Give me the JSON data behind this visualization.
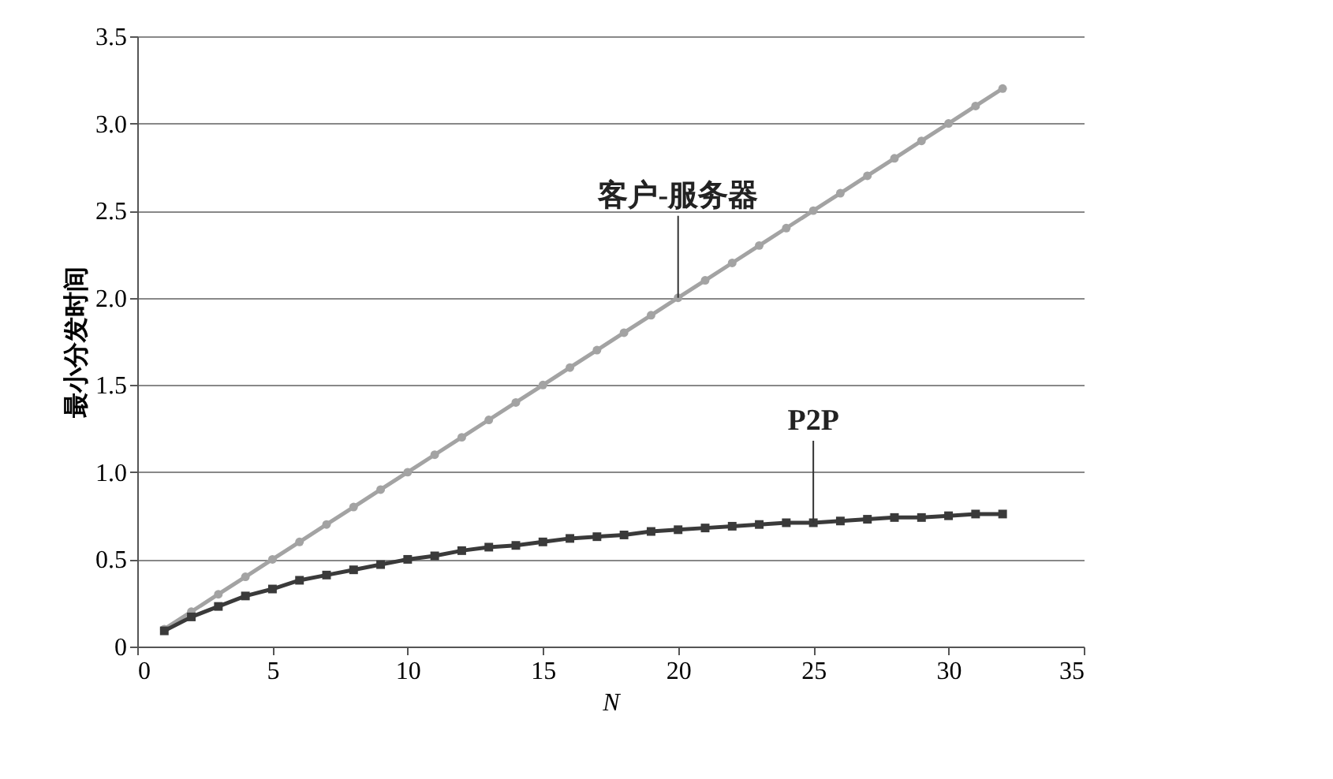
{
  "chart_data": {
    "type": "line",
    "xlabel": "N",
    "ylabel": "最小分发时间",
    "x": [
      1,
      2,
      3,
      4,
      5,
      6,
      7,
      8,
      9,
      10,
      11,
      12,
      13,
      14,
      15,
      16,
      17,
      18,
      19,
      20,
      21,
      22,
      23,
      24,
      25,
      26,
      27,
      28,
      29,
      30,
      31,
      32
    ],
    "series": [
      {
        "color": "#a3a3a3",
        "marker": "circle",
        "values": [
          0.1,
          0.2,
          0.3,
          0.4,
          0.5,
          0.6,
          0.7,
          0.8,
          0.9,
          1.0,
          1.1,
          1.2,
          1.3,
          1.4,
          1.5,
          1.6,
          1.7,
          1.8,
          1.9,
          2.0,
          2.1,
          2.2,
          2.3,
          2.4,
          2.5,
          2.6,
          2.7,
          2.8,
          2.9,
          3.0,
          3.1,
          3.2
        ]
      },
      {
        "color": "#3a3a3a",
        "marker": "square",
        "values": [
          0.09,
          0.17,
          0.23,
          0.29,
          0.33,
          0.38,
          0.41,
          0.44,
          0.47,
          0.5,
          0.52,
          0.55,
          0.57,
          0.58,
          0.6,
          0.62,
          0.63,
          0.64,
          0.66,
          0.67,
          0.68,
          0.69,
          0.7,
          0.71,
          0.71,
          0.72,
          0.73,
          0.74,
          0.74,
          0.75,
          0.76,
          0.76
        ]
      }
    ],
    "annotations": [
      {
        "text": "客户-服务器",
        "x": 20,
        "y": 2.0
      },
      {
        "text": "P2P",
        "x": 25,
        "y": 0.71
      }
    ],
    "xlim": [
      0,
      35
    ],
    "xticks": [
      0,
      5,
      10,
      15,
      20,
      25,
      30,
      35
    ],
    "ylim": [
      0,
      3.5
    ],
    "yticks": [
      0,
      0.5,
      {
        "value": 1,
        "label": "1.0"
      },
      1.5,
      {
        "value": 2,
        "label": "2.0"
      },
      2.5,
      {
        "value": 3,
        "label": "3.0"
      },
      3.5
    ],
    "grid": "y",
    "line_style": "solid"
  }
}
